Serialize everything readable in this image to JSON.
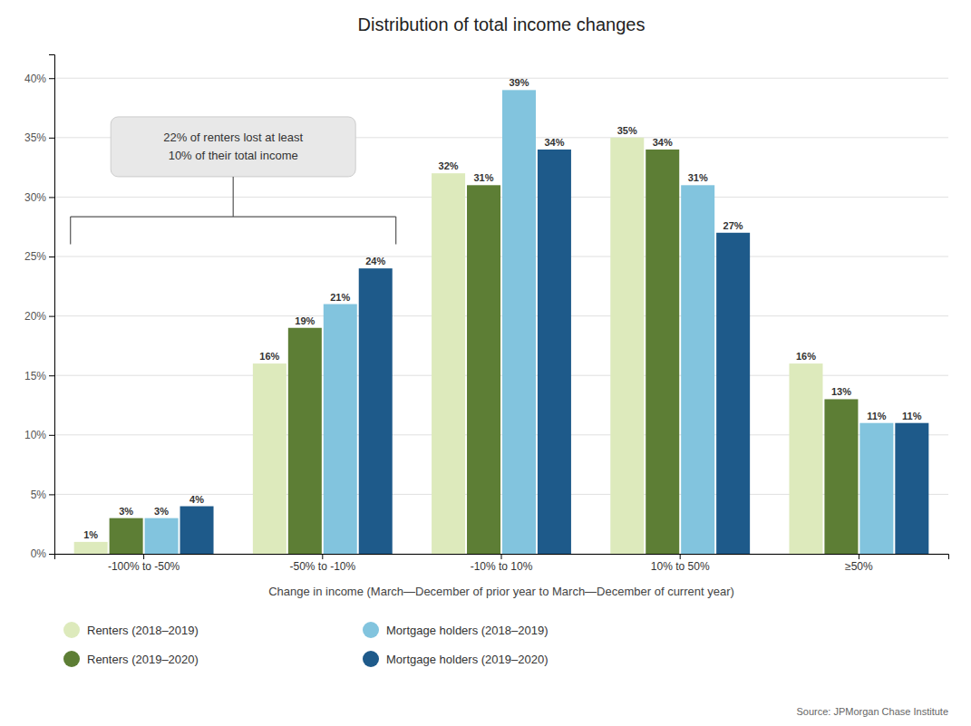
{
  "chart_data": {
    "type": "bar",
    "title": "Distribution of total income changes",
    "xlabel": "Change in income (March—December of prior year to March—December of current year)",
    "categories": [
      "-100% to -50%",
      "-50% to -10%",
      "-10% to 10%",
      "10% to 50%",
      "≥50%"
    ],
    "series": [
      {
        "name": "Renters (2018–2019)",
        "color": "#ddeabc",
        "values": [
          1,
          16,
          32,
          35,
          16
        ],
        "value_labels": [
          "1%",
          "16%",
          "32%",
          "35%",
          "16%"
        ]
      },
      {
        "name": "Renters (2019–2020)",
        "color": "#5d7e35",
        "values": [
          3,
          19,
          31,
          34,
          13
        ],
        "value_labels": [
          "3%",
          "19%",
          "31%",
          "34%",
          "13%"
        ]
      },
      {
        "name": "Mortgage holders (2018–2019)",
        "color": "#82c4de",
        "values": [
          3,
          21,
          39,
          31,
          11
        ],
        "value_labels": [
          "3%",
          "21%",
          "39%",
          "31%",
          "11%"
        ]
      },
      {
        "name": "Mortgage holders (2019–2020)",
        "color": "#1e5a8a",
        "values": [
          4,
          24,
          34,
          27,
          11
        ],
        "value_labels": [
          "4%",
          "24%",
          "34%",
          "27%",
          "11%"
        ]
      }
    ],
    "ylim": [
      0,
      42
    ],
    "yticks": [
      {
        "value": 0,
        "label": "0%"
      },
      {
        "value": 5,
        "label": "5%"
      },
      {
        "value": 10,
        "label": "10%"
      },
      {
        "value": 15,
        "label": "15%"
      },
      {
        "value": 20,
        "label": "20%"
      },
      {
        "value": 25,
        "label": "25%"
      },
      {
        "value": 30,
        "label": "30%"
      },
      {
        "value": 35,
        "label": "35%"
      },
      {
        "value": 40,
        "label": "40%"
      }
    ],
    "grid": true,
    "data_labels": true,
    "legend": "bottom",
    "annotation": "22% of renters lost at least\n10% of their total income",
    "source": "Source: JPMorgan Chase Institute"
  }
}
